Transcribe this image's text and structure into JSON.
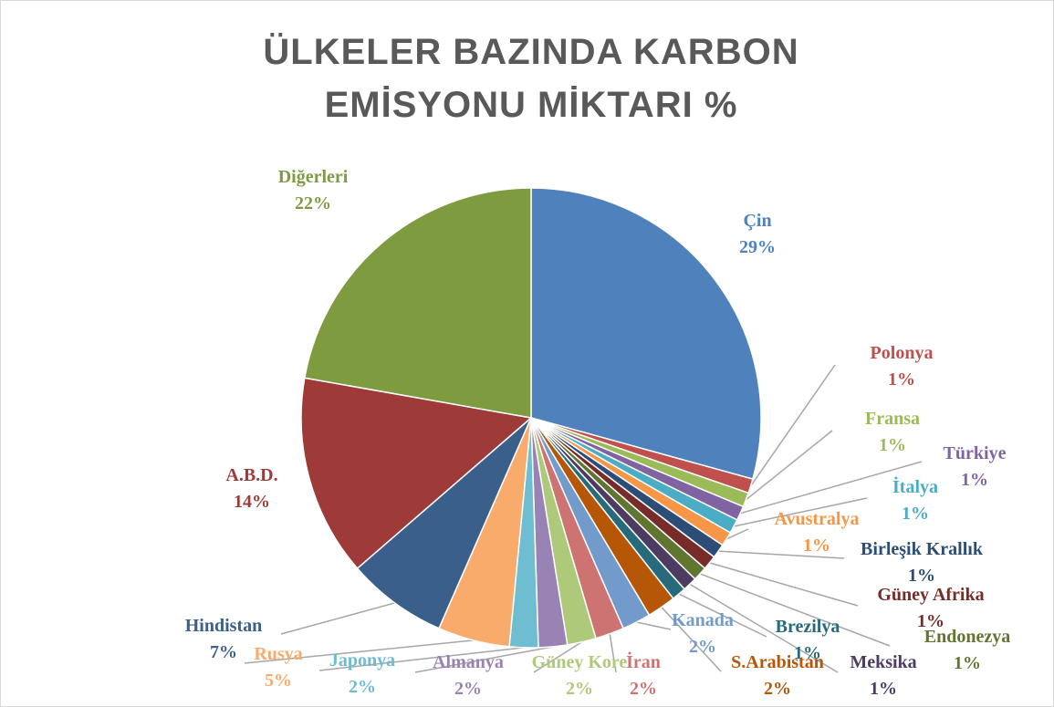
{
  "chart_data": {
    "type": "pie",
    "title": "ÜLKELER BAZINDA KARBON EMİSYONU MİKTARI %",
    "categories": [
      "Çin",
      "Polonya",
      "Fransa",
      "Türkiye",
      "İtalya",
      "Avustralya",
      "Birleşik Krallık",
      "Güney Afrika",
      "Endonezya",
      "Meksika",
      "Brezilya",
      "S.Arabistan",
      "Kanada",
      "İran",
      "Güney Kore",
      "Almanya",
      "Japonya",
      "Rusya",
      "Hindistan",
      "A.B.D.",
      "Diğerleri"
    ],
    "values": [
      29,
      1,
      1,
      1,
      1,
      1,
      1,
      1,
      1,
      1,
      1,
      2,
      2,
      2,
      2,
      2,
      2,
      5,
      7,
      14,
      22
    ],
    "value_labels": [
      "29%",
      "1%",
      "1%",
      "1%",
      "1%",
      "1%",
      "1%",
      "1%",
      "1%",
      "1%",
      "1%",
      "2%",
      "2%",
      "2%",
      "2%",
      "2%",
      "2%",
      "5%",
      "7%",
      "14%",
      "22%"
    ],
    "colors": [
      "#4f81bd",
      "#c0504d",
      "#9bbb59",
      "#8064a2",
      "#4bacc6",
      "#f79646",
      "#2c4d75",
      "#772c2a",
      "#5f7530",
      "#4d3b62",
      "#276a7c",
      "#b65708",
      "#729aca",
      "#cd7371",
      "#afc97a",
      "#9983b5",
      "#6fbdd1",
      "#f9ab6b",
      "#3a5f8b",
      "#9e3a37",
      "#7e9c3f"
    ]
  }
}
